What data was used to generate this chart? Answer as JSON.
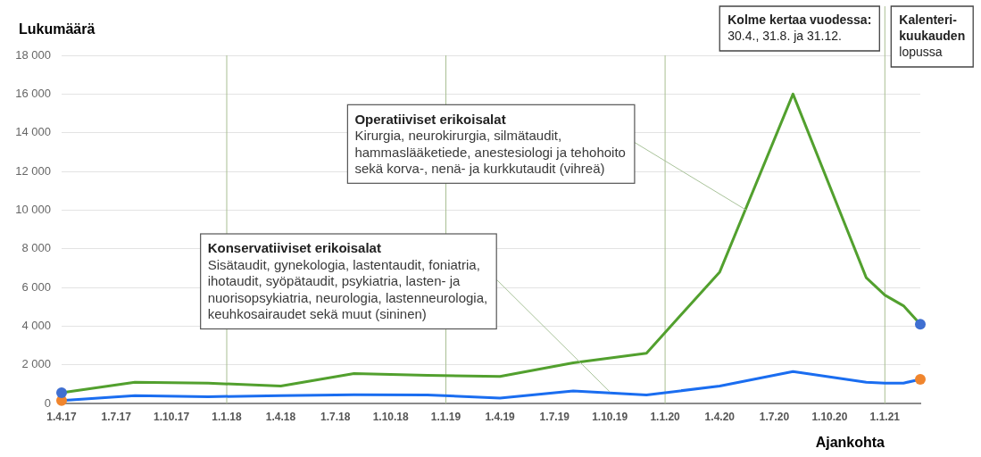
{
  "chart_data": {
    "type": "line",
    "xlabel": "Ajankohta",
    "ylabel": "Lukumäärä",
    "x": [
      "2017-04",
      "2017-08",
      "2017-12",
      "2018-04",
      "2018-08",
      "2018-12",
      "2019-04",
      "2019-08",
      "2019-12",
      "2020-04",
      "2020-08",
      "2020-12",
      "2021-01",
      "2021-02",
      "2021-03"
    ],
    "xlim": [
      "2017-04",
      "2021-03"
    ],
    "xticks": [
      {
        "value": "2017-04",
        "label": "1.4.17"
      },
      {
        "value": "2017-07",
        "label": "1.7.17"
      },
      {
        "value": "2017-10",
        "label": "1.10.17"
      },
      {
        "value": "2018-01",
        "label": "1.1.18"
      },
      {
        "value": "2018-04",
        "label": "1.4.18"
      },
      {
        "value": "2018-07",
        "label": "1.7.18"
      },
      {
        "value": "2018-10",
        "label": "1.10.18"
      },
      {
        "value": "2019-01",
        "label": "1.1.19"
      },
      {
        "value": "2019-04",
        "label": "1.4.19"
      },
      {
        "value": "2019-07",
        "label": "1.7.19"
      },
      {
        "value": "2019-10",
        "label": "1.10.19"
      },
      {
        "value": "2020-01",
        "label": "1.1.20"
      },
      {
        "value": "2020-04",
        "label": "1.4.20"
      },
      {
        "value": "2020-07",
        "label": "1.7.20"
      },
      {
        "value": "2020-10",
        "label": "1.10.20"
      },
      {
        "value": "2021-01",
        "label": "1.1.21"
      }
    ],
    "ylim": [
      0,
      18000
    ],
    "yticks": [
      0,
      {
        "value": 2000,
        "label": "2 000"
      },
      {
        "value": 4000,
        "label": "4 000"
      },
      {
        "value": 6000,
        "label": "6 000"
      },
      {
        "value": 8000,
        "label": "8 000"
      },
      {
        "value": 10000,
        "label": "10 000"
      },
      {
        "value": 12000,
        "label": "12 000"
      },
      {
        "value": 14000,
        "label": "14 000"
      },
      {
        "value": 16000,
        "label": "16 000"
      },
      {
        "value": 18000,
        "label": "18 000"
      }
    ],
    "grid": "y",
    "marker": "none",
    "series": [
      {
        "color": "#52a02e",
        "values": [
          550,
          1100,
          1050,
          900,
          1550,
          1450,
          1400,
          2100,
          2600,
          6800,
          16000,
          6500,
          5600,
          5050,
          4100
        ]
      },
      {
        "color": "#1a6df0",
        "values": [
          150,
          400,
          350,
          400,
          450,
          440,
          280,
          650,
          440,
          900,
          1650,
          1100,
          1050,
          1050,
          1250
        ]
      },
      {
        "type": "scatter",
        "marker": "circle",
        "color": "#3f6fd1",
        "x": [
          "2017-04",
          "2021-03"
        ],
        "values": [
          550,
          4100
        ]
      },
      {
        "type": "scatter",
        "marker": "circle",
        "color": "#f0852d",
        "x": [
          "2017-04",
          "2021-03"
        ],
        "values": [
          150,
          1250
        ]
      }
    ],
    "ref_lines": [
      {
        "axis": "x",
        "value": "2018-01",
        "color": "#a9bf92"
      },
      {
        "axis": "x",
        "value": "2019-01",
        "color": "#a9bf92"
      },
      {
        "axis": "x",
        "value": "2020-01",
        "color": "#a9bf92"
      },
      {
        "axis": "x",
        "value": "2021-01",
        "color": "#a9bf92"
      }
    ],
    "annotations": [
      {
        "text": "Operatiiviset erikoisalat\nKirurgia, neurokirurgia, silmätaudit, hammaslääketiede, anestesiologi ja tehohoito sekä korva-, nenä- ja kurkkutaudit (vihreä)",
        "x": "2020-05-15",
        "y": 10000
      },
      {
        "text": "Konservatiiviset erikoisalat\nSisätaudit, gynekologia, lastentaudit, foniatria, ihotaudit, syöpätaudit, psykiatria, lasten- ja nuorisopsykiatria, neurologia, lastenneurologia, keuhkosairaudet sekä muut (sininen)",
        "x": "2019-10",
        "y": 600
      },
      "Kolme kertaa vuodessa:\n30.4., 31.8. ja 31.12.",
      "Kalenteri-\nkuukauden\nlopussa"
    ]
  }
}
